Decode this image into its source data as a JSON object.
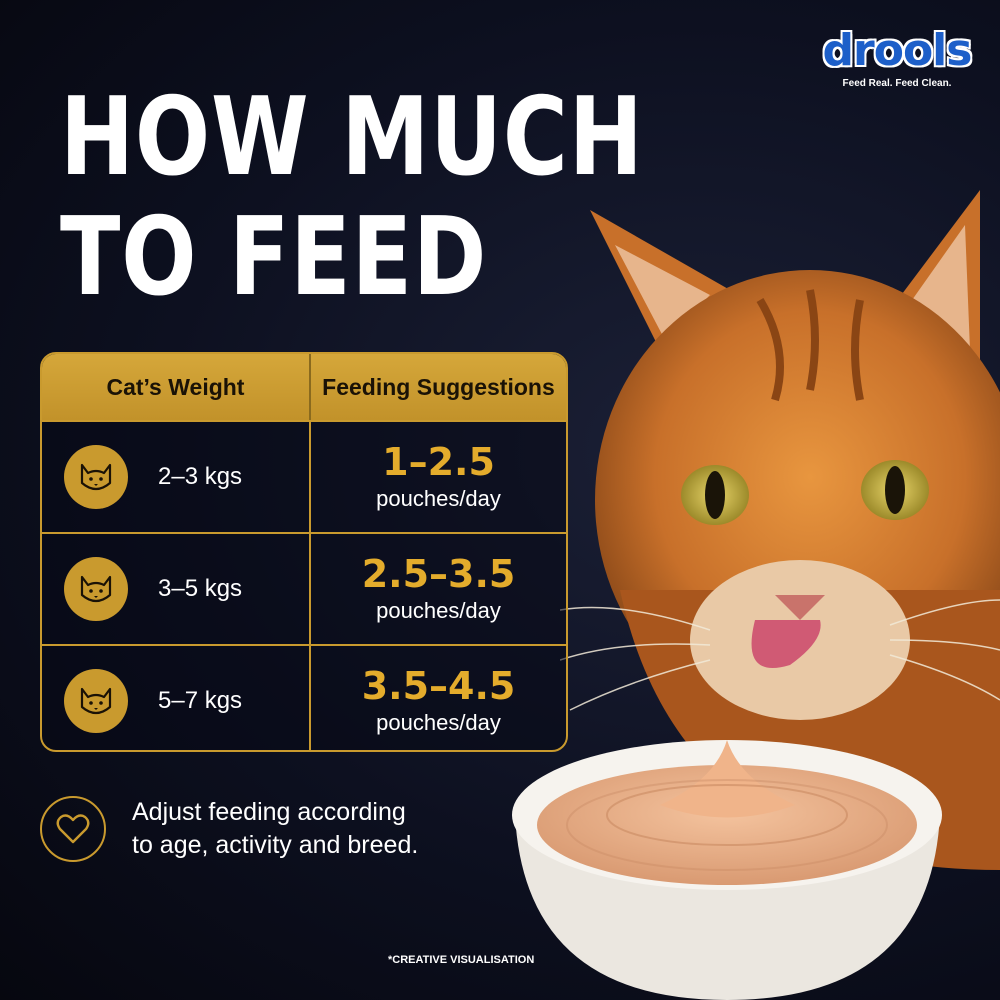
{
  "brand": {
    "name": "drools",
    "tagline": "Feed Real. Feed Clean."
  },
  "headline": {
    "line1": "HOW MUCH",
    "line2": "TO FEED"
  },
  "table": {
    "headers": {
      "weight": "Cat’s Weight",
      "feeding": "Feeding Suggestions"
    },
    "rows": [
      {
        "weight": "2–3 kgs",
        "amount": "1–2.5",
        "unit": "pouches/day"
      },
      {
        "weight": "3–5 kgs",
        "amount": "2.5–3.5",
        "unit": "pouches/day"
      },
      {
        "weight": "5–7 kgs",
        "amount": "3.5–4.5",
        "unit": "pouches/day"
      }
    ]
  },
  "note": {
    "line1": "Adjust feeding according",
    "line2": "to age, activity and breed."
  },
  "disclaimer": "*CREATIVE VISUALISATION",
  "colors": {
    "gold": "#c99a2e",
    "amount": "#e4ac2c",
    "background": "#0d1020",
    "brand_blue": "#1d5fc9"
  },
  "icons": {
    "row_icon": "cat-face-icon",
    "note_icon": "heart-icon"
  }
}
